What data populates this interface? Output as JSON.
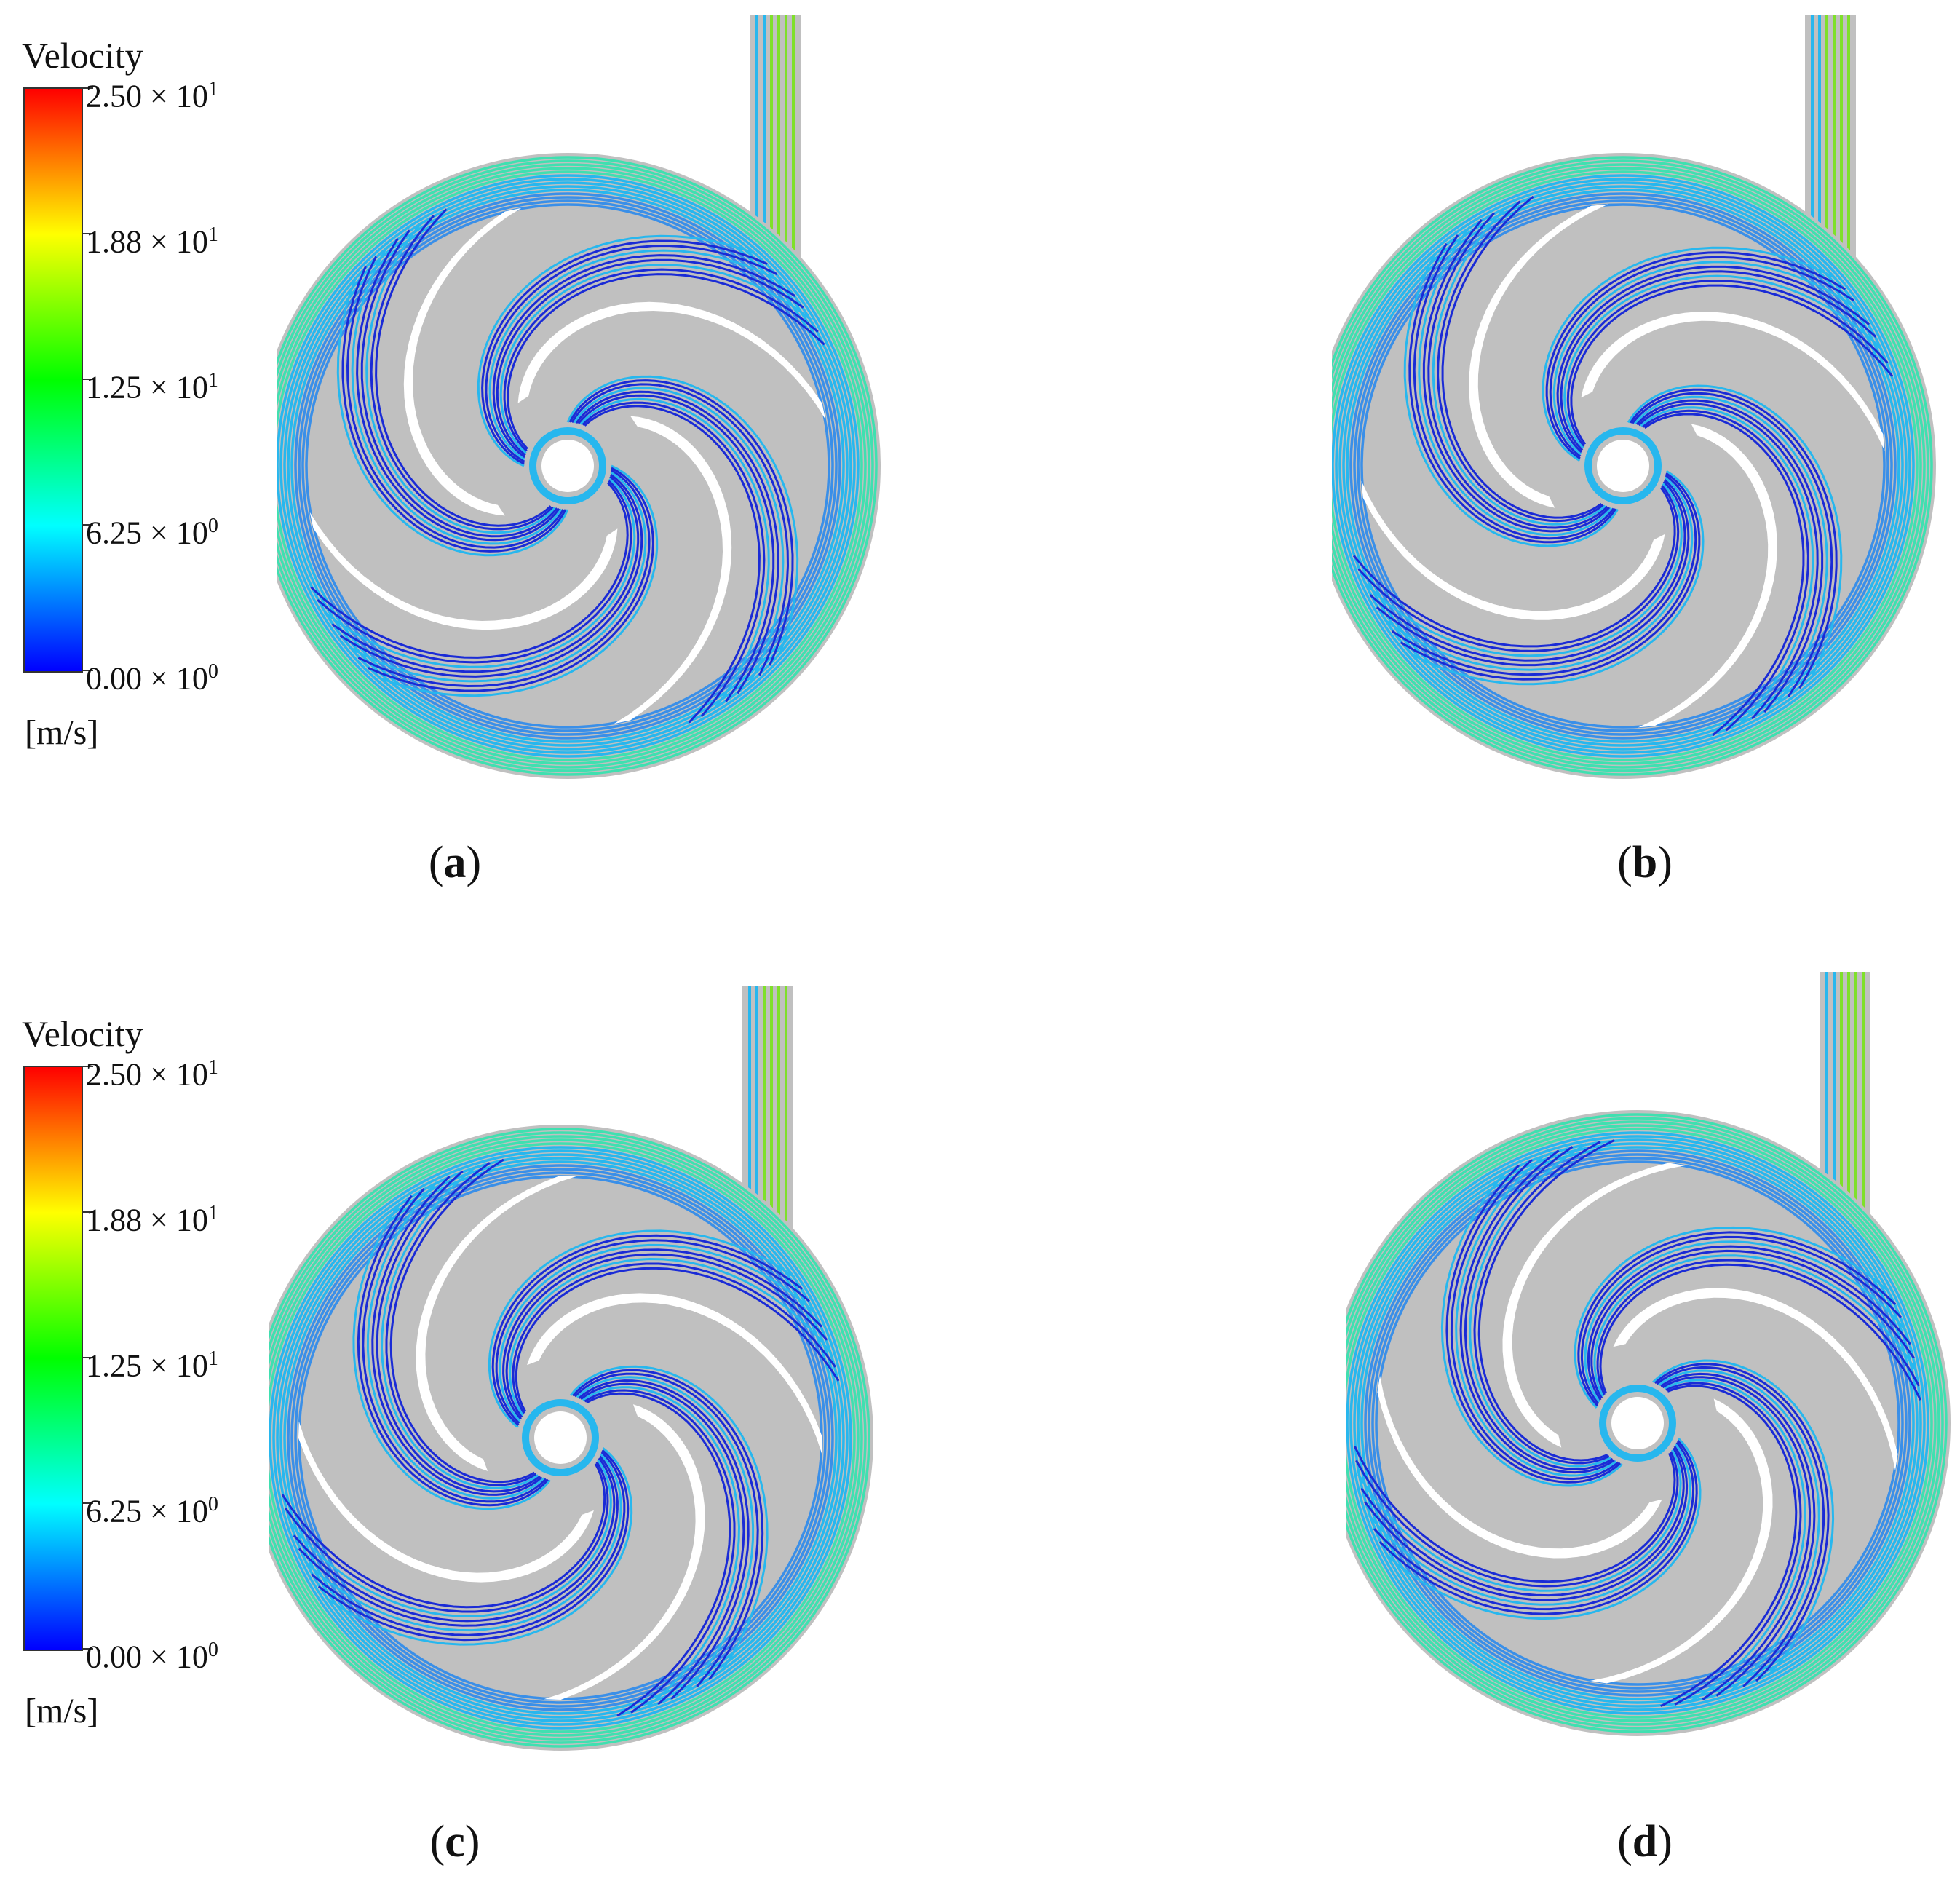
{
  "legend": {
    "title": "Velocity",
    "ticks": [
      {
        "mantissa": "2.50 × 10",
        "exp": "1"
      },
      {
        "mantissa": "1.88 × 10",
        "exp": "1"
      },
      {
        "mantissa": "1.25 × 10",
        "exp": "1"
      },
      {
        "mantissa": "6.25 × 10",
        "exp": "0"
      },
      {
        "mantissa": "0.00 × 10",
        "exp": "0"
      }
    ],
    "unit": "[m/s]",
    "colors": [
      "#0000ff",
      "#00ffff",
      "#00ff00",
      "#ffff00",
      "#ff0000"
    ]
  },
  "panels": [
    {
      "label": "a"
    },
    {
      "label": "b"
    },
    {
      "label": "c"
    },
    {
      "label": "d"
    }
  ],
  "colors": {
    "volute_solid": "#c0c0c0",
    "stream_slow": "#1a2bd6",
    "stream_mid": "#27b7ee",
    "stream_fast": "#3fe0b0",
    "outlet": "#7fe02a"
  }
}
